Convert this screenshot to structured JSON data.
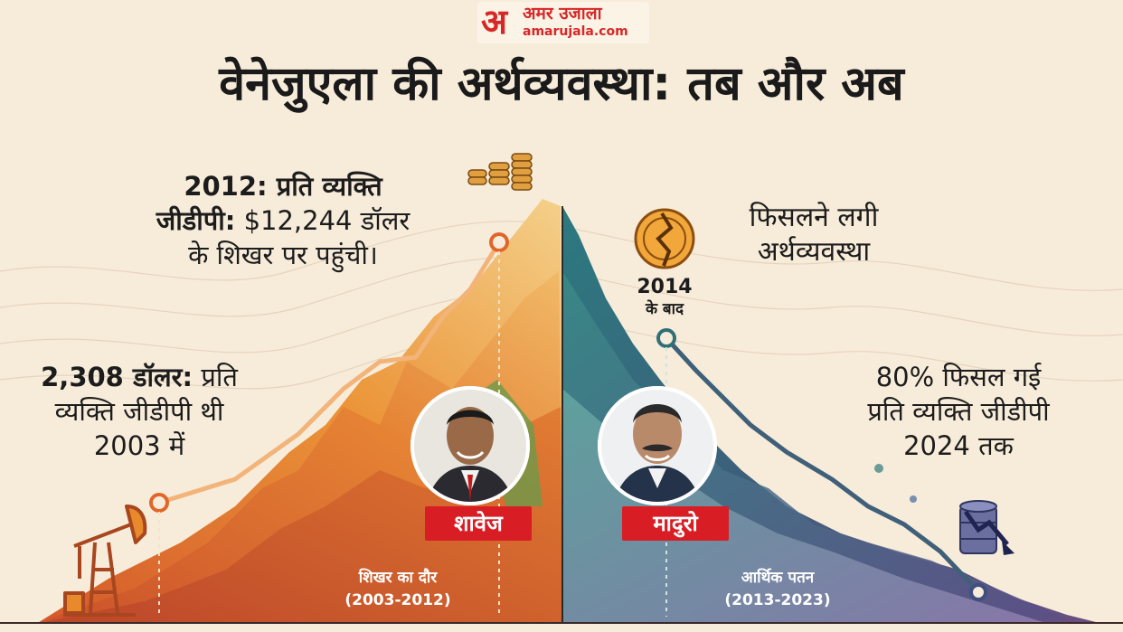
{
  "logo": {
    "mark": "अ",
    "hindi": "अमर उजाला",
    "english": "amarujala.com"
  },
  "title": "वेनेजुएला की अर्थव्यवस्था: तब और अब",
  "left": {
    "peak_line1": "2012: प्रति व्यक्ति",
    "peak_line2_bold": "जीडीपी:",
    "peak_line2_rest": " $12,244 डॉलर",
    "peak_line3": "के शिखर पर पहुंची।",
    "start_line1_bold": "2,308 डॉलर:",
    "start_line1_rest": " प्रति",
    "start_line2": "व्यक्ति जीडीपी थी",
    "start_line3": "2003 में",
    "era_line1": "शिखर का दौर",
    "era_line2": "(2003-2012)",
    "leader": "शावेज"
  },
  "right": {
    "slip_line1": "फिसलने लगी",
    "slip_line2": "अर्थव्यवस्था",
    "year_line1": "2014",
    "year_line2": "के बाद",
    "drop_line1": "80% फिसल गई",
    "drop_line2": "प्रति व्यक्ति जीडीपी",
    "drop_line3": "2024 तक",
    "era_line1": "आर्थिक पतन",
    "era_line2": "(2013-2023)",
    "leader": "मादुरो"
  },
  "icons": {
    "left_top": "coin-stack-icon",
    "left_bottom": "oil-pump-icon",
    "right_top": "broken-coin-icon",
    "right_bottom": "oil-barrel-decline-icon"
  },
  "colors": {
    "background": "#f7ecda",
    "left_mountain": "#e8892c",
    "right_mountain": "#2f6f78",
    "badge": "#d81e24",
    "logo": "#d62828"
  }
}
